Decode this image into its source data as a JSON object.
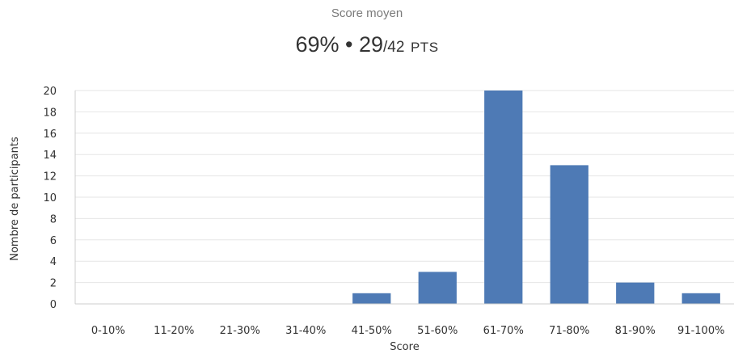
{
  "summary": {
    "label": "Score moyen",
    "percent": "69%",
    "separator": "•",
    "points": "29",
    "total": "/42",
    "unit": "PTS"
  },
  "colors": {
    "bar": "#4e7ab5",
    "grid": "#e6e6e6",
    "axis": "#cccccc"
  },
  "chart_data": {
    "type": "bar",
    "title": "",
    "xlabel": "Score",
    "ylabel": "Nombre de participants",
    "categories": [
      "0-10%",
      "11-20%",
      "21-30%",
      "31-40%",
      "41-50%",
      "51-60%",
      "61-70%",
      "71-80%",
      "81-90%",
      "91-100%"
    ],
    "values": [
      0,
      0,
      0,
      0,
      1,
      3,
      20,
      13,
      2,
      1
    ],
    "ylim": [
      0,
      20
    ],
    "yticks": [
      0,
      2,
      4,
      6,
      8,
      10,
      12,
      14,
      16,
      18,
      20
    ],
    "grid": true,
    "legend": "none"
  }
}
